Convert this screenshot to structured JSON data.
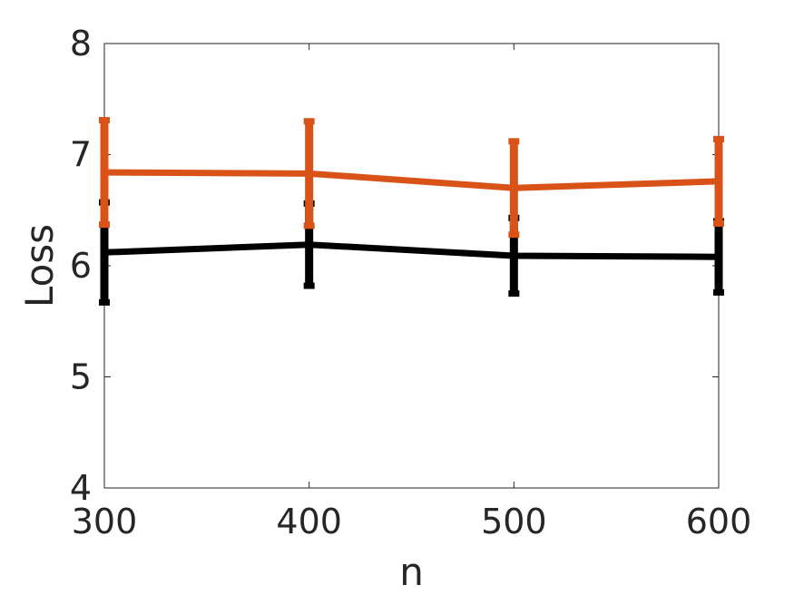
{
  "chart_data": {
    "type": "line",
    "title": "",
    "xlabel": "n",
    "ylabel": "Loss",
    "xlim": [
      300,
      600
    ],
    "ylim": [
      4,
      8
    ],
    "x_ticks": [
      300,
      400,
      500,
      600
    ],
    "y_ticks": [
      4,
      5,
      6,
      7,
      8
    ],
    "grid": false,
    "legend": "none",
    "series": [
      {
        "color": "#000000",
        "x": [
          300,
          400,
          500,
          600
        ],
        "y": [
          6.12,
          6.19,
          6.09,
          6.08
        ],
        "err": [
          0.45,
          0.37,
          0.34,
          0.32
        ]
      },
      {
        "color": "#d95319",
        "x": [
          300,
          400,
          500,
          600
        ],
        "y": [
          6.84,
          6.83,
          6.7,
          6.76
        ],
        "err": [
          0.47,
          0.47,
          0.42,
          0.38
        ]
      }
    ]
  }
}
